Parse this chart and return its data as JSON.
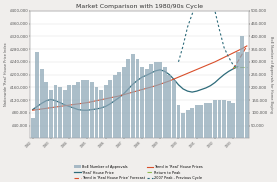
{
  "title": "Market Comparison with 1980/90s Cycle",
  "ylabel_left": "Nationwide 'Real' House Price Index",
  "ylabel_right": "BoE Number of Approvals for Home Buying",
  "bar_color": "#8fa8b8",
  "ylim_left": [
    0,
    400000
  ],
  "ylim_right": [
    0,
    500000
  ],
  "yticks_left": [
    40000,
    80000,
    120000,
    160000,
    200000,
    240000,
    280000,
    320000,
    360000,
    400000
  ],
  "yticks_right": [
    50000,
    100000,
    150000,
    200000,
    250000,
    300000,
    350000,
    400000,
    450000,
    500000
  ],
  "ytick_labels_left": [
    "£40,000",
    "£80,000",
    "£120,000",
    "£160,000",
    "£200,000",
    "£240,000",
    "£280,000",
    "£320,000",
    "£360,000",
    "£400,000"
  ],
  "ytick_labels_right": [
    "50,000",
    "100,000",
    "150,000",
    "200,000",
    "250,000",
    "300,000",
    "350,000",
    "400,000",
    "450,000",
    "500,000"
  ],
  "n_bars": 48,
  "bar_values": [
    80000,
    340000,
    270000,
    220000,
    190000,
    210000,
    200000,
    190000,
    210000,
    210000,
    220000,
    230000,
    230000,
    220000,
    200000,
    190000,
    210000,
    230000,
    250000,
    260000,
    280000,
    310000,
    330000,
    310000,
    280000,
    270000,
    290000,
    300000,
    300000,
    280000,
    250000,
    230000,
    130000,
    100000,
    110000,
    120000,
    130000,
    130000,
    140000,
    140000,
    150000,
    150000,
    150000,
    145000,
    140000,
    340000,
    400000,
    340000
  ],
  "real_house_price": [
    90000,
    100000,
    110000,
    118000,
    122000,
    118000,
    112000,
    105000,
    100000,
    95000,
    90000,
    88000,
    88000,
    90000,
    92000,
    95000,
    100000,
    108000,
    118000,
    128000,
    140000,
    155000,
    170000,
    182000,
    192000,
    198000,
    205000,
    212000,
    215000,
    210000,
    200000,
    185000,
    168000,
    155000,
    148000,
    145000,
    148000,
    153000,
    158000,
    165000,
    175000,
    188000,
    200000,
    210000,
    218000,
    225000,
    null,
    null
  ],
  "trend_real_prices": [
    88000,
    90000,
    92000,
    94000,
    96000,
    98000,
    100000,
    102000,
    104000,
    106000,
    108000,
    110000,
    112000,
    115000,
    118000,
    121000,
    124000,
    127000,
    130000,
    133000,
    137000,
    141000,
    145000,
    149000,
    153000,
    157000,
    161000,
    165000,
    170000,
    175000,
    180000,
    186000,
    192000,
    198000,
    204000,
    210000,
    216000,
    222000,
    228000,
    234000,
    240000,
    247000,
    254000,
    261000,
    268000,
    275000,
    282000,
    290000
  ],
  "trend_forecast": [
    null,
    null,
    null,
    null,
    null,
    null,
    null,
    null,
    null,
    null,
    null,
    null,
    null,
    null,
    null,
    null,
    null,
    null,
    null,
    null,
    null,
    null,
    null,
    null,
    null,
    null,
    null,
    null,
    null,
    null,
    null,
    null,
    null,
    null,
    null,
    null,
    null,
    null,
    null,
    null,
    null,
    null,
    null,
    null,
    218000,
    240000,
    265000,
    290000
  ],
  "return_to_peak": [
    null,
    null,
    null,
    null,
    null,
    null,
    null,
    null,
    null,
    null,
    null,
    null,
    null,
    null,
    null,
    null,
    null,
    null,
    null,
    null,
    null,
    null,
    null,
    null,
    null,
    null,
    null,
    null,
    null,
    null,
    null,
    null,
    null,
    null,
    null,
    null,
    null,
    null,
    null,
    null,
    null,
    null,
    null,
    null,
    225000,
    225000,
    225000,
    225000
  ],
  "peak_2007": [
    null,
    null,
    null,
    null,
    null,
    null,
    null,
    null,
    null,
    null,
    null,
    null,
    null,
    null,
    null,
    null,
    null,
    null,
    null,
    null,
    null,
    null,
    null,
    null,
    null,
    null,
    null,
    null,
    null,
    null,
    null,
    null,
    240000,
    290000,
    350000,
    390000,
    430000,
    460000,
    470000,
    450000,
    400000,
    340000,
    285000,
    255000,
    230000,
    218000,
    null,
    null
  ],
  "real_hp_color": "#2e6b7a",
  "trend_real_color": "#d94f2b",
  "trend_forecast_color": "#d94f2b",
  "return_to_peak_color": "#8fba4f",
  "peak_2007_color": "#2e6b7a",
  "background_color": "#f0eeec"
}
